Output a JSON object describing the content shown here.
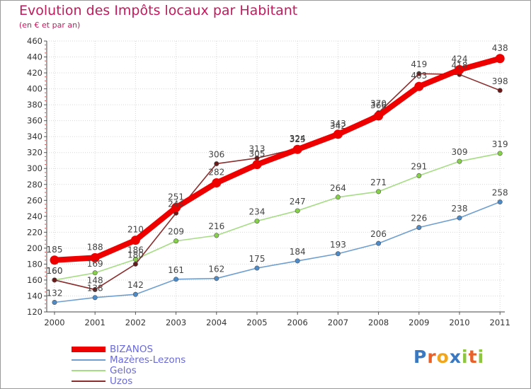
{
  "title": "Evolution des Impôts locaux par Habitant",
  "subtitle": "(en € et par an)",
  "logo": {
    "text": "Proxiti",
    "letters": [
      {
        "ch": "P",
        "color": "#3a78c2"
      },
      {
        "ch": "r",
        "color": "#e9612a"
      },
      {
        "ch": "o",
        "color": "#f0a51e"
      },
      {
        "ch": "x",
        "color": "#3a78c2"
      },
      {
        "ch": "i",
        "color": "#8cc63f"
      },
      {
        "ch": "t",
        "color": "#e9612a"
      },
      {
        "ch": "i",
        "color": "#8cc63f"
      }
    ]
  },
  "chart_data": {
    "type": "line",
    "title": "Evolution des Impôts locaux par Habitant",
    "subtitle": "(en € et par an)",
    "xlabel": "",
    "ylabel": "",
    "categories": [
      "2000",
      "2001",
      "2002",
      "2003",
      "2004",
      "2005",
      "2006",
      "2007",
      "2008",
      "2009",
      "2010",
      "2011"
    ],
    "ylim": [
      120,
      460
    ],
    "yticks": [
      120,
      140,
      160,
      180,
      200,
      220,
      240,
      260,
      280,
      300,
      320,
      340,
      360,
      380,
      400,
      420,
      440,
      460
    ],
    "grid": true,
    "legend_position": "bottom-left",
    "series": [
      {
        "name": "Mazères-Lezons",
        "color": "#6e9fd0",
        "marker_color": "#4d8ac8",
        "values": [
          132,
          138,
          142,
          161,
          162,
          175,
          184,
          193,
          206,
          226,
          238,
          258
        ]
      },
      {
        "name": "Gelos",
        "color": "#a6dc84",
        "marker_color": "#86d04a",
        "values": [
          160,
          169,
          186,
          209,
          216,
          234,
          247,
          264,
          271,
          291,
          309,
          319
        ]
      },
      {
        "name": "Uzos",
        "color": "#8a2e2e",
        "marker_color": "#6b1a1a",
        "values": [
          160,
          148,
          180,
          244,
          306,
          313,
          325,
          342,
          370,
          419,
          418,
          398
        ]
      },
      {
        "name": "BIZANOS",
        "color": "#ee0000",
        "marker_color": "#ee0000",
        "values": [
          185,
          188,
          210,
          251,
          282,
          305,
          324,
          343,
          366,
          403,
          424,
          438
        ]
      }
    ],
    "label_series": [
      "Mazères-Lezons",
      "Gelos",
      "Uzos",
      "BIZANOS"
    ],
    "legend": [
      "BIZANOS",
      "Mazères-Lezons",
      "Gelos",
      "Uzos"
    ]
  }
}
